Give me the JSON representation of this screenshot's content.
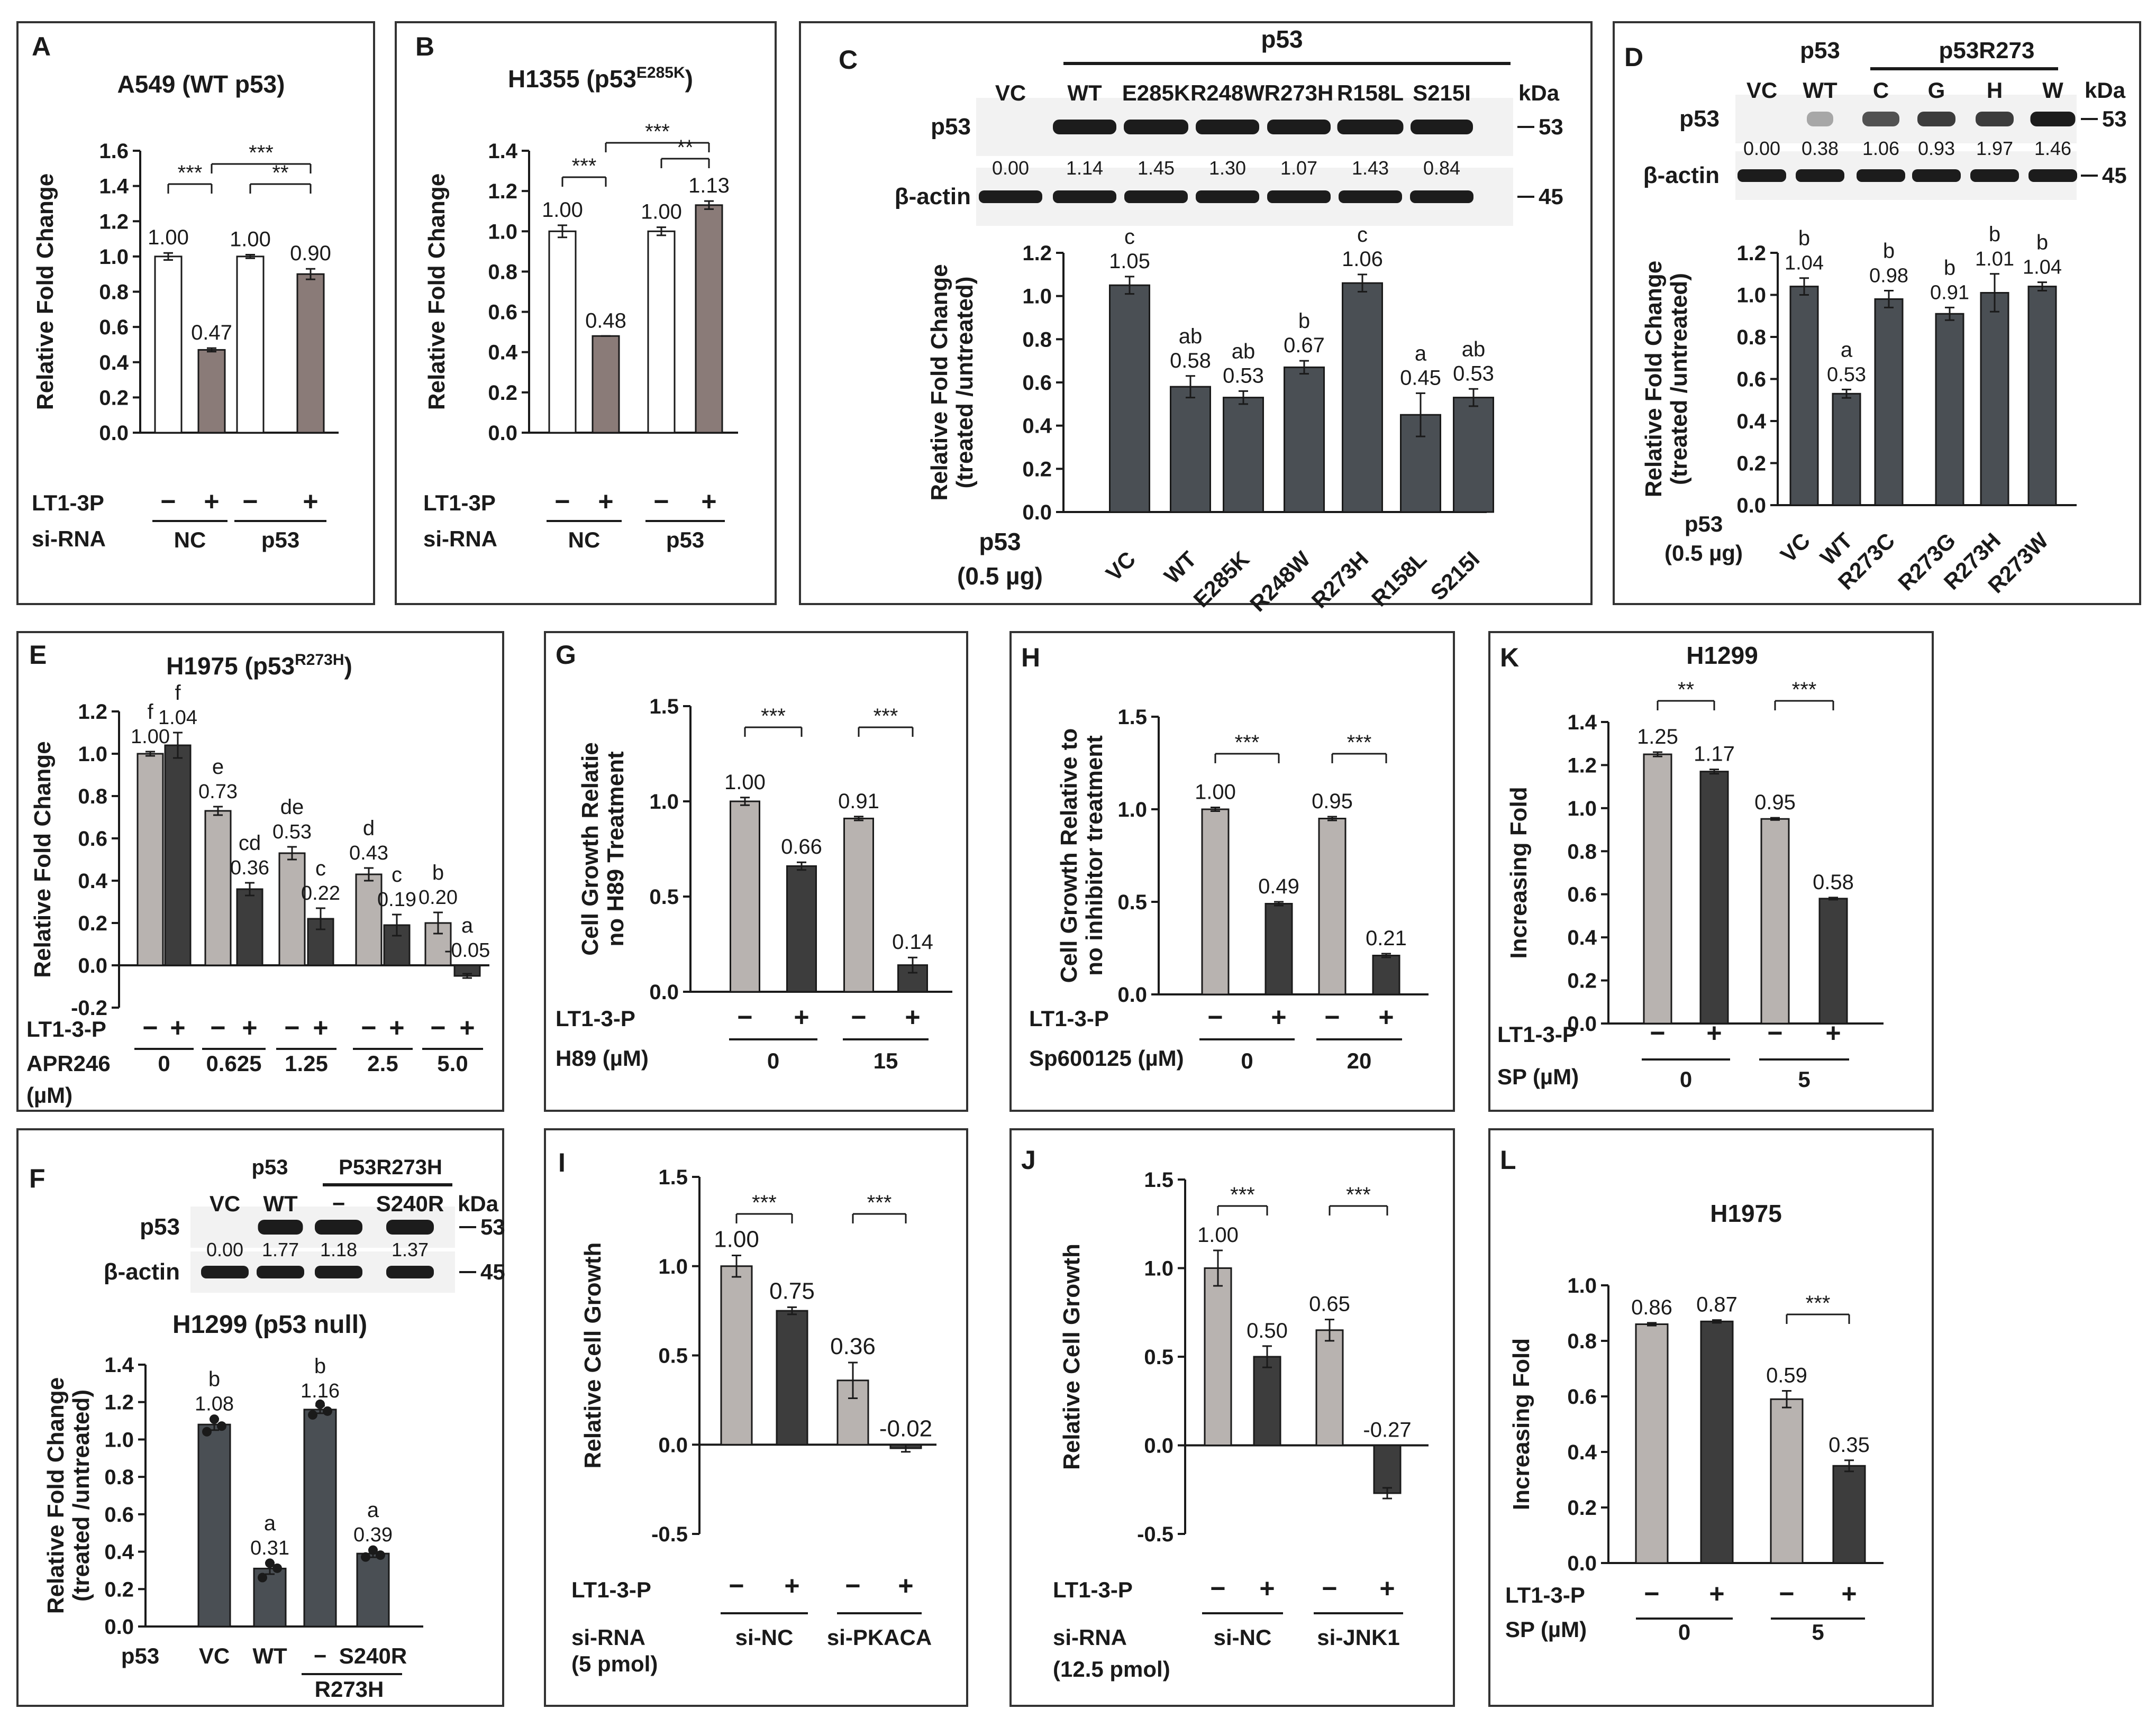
{
  "colors": {
    "white": "#ffffff",
    "light": "#b8b3b0",
    "dark": "#3d3d3d",
    "mid": "#8a7b78",
    "bar": "#4a4f54",
    "blot_bg": "#f2f2f2",
    "band": "#1c1c1c",
    "border": "#333333"
  },
  "chart_data": [
    {
      "panel": "A",
      "type": "bar",
      "title": "A549 (WT p53)",
      "ylabel": "Relative Fold Change",
      "ylim": [
        0,
        1.6
      ],
      "yticks": [
        "0.0",
        "0.2",
        "0.4",
        "0.6",
        "0.8",
        "1.0",
        "1.2",
        "1.4",
        "1.6"
      ],
      "values": [
        1.0,
        0.47,
        1.0,
        0.9
      ],
      "errors": [
        0.02,
        0.01,
        0.01,
        0.03
      ],
      "labels": [
        "1.00",
        "0.47",
        "1.00",
        "0.90"
      ],
      "letters": [],
      "fills": [
        "white",
        "mid",
        "white",
        "mid"
      ],
      "brackets": [
        {
          "from": 0,
          "to": 1,
          "text": "***"
        },
        {
          "from": 2,
          "to": 3,
          "text": "**"
        },
        {
          "from": 1,
          "to": 3,
          "text": "***"
        }
      ],
      "signs": [
        "−",
        "+",
        "−",
        "+"
      ],
      "row_labels": [
        "LT1-3P",
        "si-RNA"
      ],
      "group_labels": [
        "NC",
        "p53"
      ]
    },
    {
      "panel": "B",
      "type": "bar",
      "title": "H1355 (p53",
      "title_sup": "E285K",
      "title_end": ")",
      "ylabel": "Relative Fold Change",
      "ylim": [
        0,
        1.4
      ],
      "yticks": [
        "0.0",
        "0.2",
        "0.4",
        "0.6",
        "0.8",
        "1.0",
        "1.2",
        "1.4"
      ],
      "values": [
        1.0,
        0.48,
        1.0,
        1.13
      ],
      "errors": [
        0.03,
        0.0,
        0.02,
        0.02
      ],
      "labels": [
        "1.00",
        "0.48",
        "1.00",
        "1.13"
      ],
      "letters": [],
      "fills": [
        "white",
        "mid",
        "white",
        "mid"
      ],
      "brackets": [
        {
          "from": 0,
          "to": 1,
          "text": "***"
        },
        {
          "from": 2,
          "to": 3,
          "text": "**"
        },
        {
          "from": 1,
          "to": 3,
          "text": "***"
        }
      ],
      "signs": [
        "−",
        "+",
        "−",
        "+"
      ],
      "row_labels": [
        "LT1-3P",
        "si-RNA"
      ],
      "group_labels": [
        "NC",
        "p53"
      ]
    },
    {
      "panel": "C",
      "type": "bar",
      "ylabel_lines": [
        "Relative Fold Change",
        "(treated /untreated)"
      ],
      "ylim": [
        0,
        1.2
      ],
      "yticks": [
        "0.0",
        "0.2",
        "0.4",
        "0.6",
        "0.8",
        "1.0",
        "1.2"
      ],
      "categories": [
        "VC",
        "WT",
        "E285K",
        "R248W",
        "R273H",
        "R158L",
        "S215I"
      ],
      "values": [
        1.05,
        0.58,
        0.53,
        0.67,
        1.06,
        0.45,
        0.53
      ],
      "errors": [
        0.04,
        0.05,
        0.03,
        0.03,
        0.04,
        0.1,
        0.04
      ],
      "labels": [
        "1.05",
        "0.58",
        "0.53",
        "0.67",
        "1.06",
        "0.45",
        "0.53"
      ],
      "letters": [
        "c",
        "ab",
        "ab",
        "b",
        "c",
        "a",
        "ab"
      ],
      "xlabel_lines": [
        "p53",
        "(0.5 µg)"
      ],
      "blot": {
        "header": "p53",
        "lanes": [
          "VC",
          "WT",
          "E285K",
          "R248W",
          "R273H",
          "R158L",
          "S215I"
        ],
        "kda_label": "kDa",
        "rows": [
          "p53",
          "β-actin"
        ],
        "mw": [
          "53",
          "45"
        ],
        "quant": [
          "0.00",
          "1.14",
          "1.45",
          "1.30",
          "1.07",
          "1.43",
          "0.84"
        ]
      }
    },
    {
      "panel": "D",
      "type": "bar",
      "ylabel_lines": [
        "Relative Fold Change",
        "(treated /untreated)"
      ],
      "ylim": [
        0,
        1.2
      ],
      "yticks": [
        "0.0",
        "0.2",
        "0.4",
        "0.6",
        "0.8",
        "1.0",
        "1.2"
      ],
      "categories": [
        "VC",
        "WT",
        "R273C",
        "R273G",
        "R273H",
        "R273W"
      ],
      "values": [
        1.04,
        0.53,
        0.98,
        0.91,
        1.01,
        1.04
      ],
      "errors": [
        0.04,
        0.02,
        0.04,
        0.03,
        0.09,
        0.02
      ],
      "labels": [
        "1.04",
        "0.53",
        "0.98",
        "0.91",
        "1.01",
        "1.04"
      ],
      "letters": [
        "b",
        "a",
        "b",
        "b",
        "b",
        "b"
      ],
      "xlabel_lines": [
        "p53",
        "(0.5 µg)"
      ],
      "blot": {
        "header_left": "p53",
        "header_right": "p53R273",
        "lanes": [
          "VC",
          "WT",
          "C",
          "G",
          "H",
          "W"
        ],
        "kda_label": "kDa",
        "rows": [
          "p53",
          "β-actin"
        ],
        "mw": [
          "53",
          "45"
        ],
        "quant": [
          "0.00",
          "0.38",
          "1.06",
          "0.93",
          "1.97",
          "1.46"
        ]
      }
    },
    {
      "panel": "E",
      "type": "bar",
      "title": "H1975 (p53",
      "title_sup": "R273H",
      "title_end": ")",
      "ylabel": "Relative Fold Change",
      "ylim": [
        -0.2,
        1.2
      ],
      "yticks": [
        "-0.2",
        "0.0",
        "0.2",
        "0.4",
        "0.6",
        "0.8",
        "1.0",
        "1.2"
      ],
      "values": [
        1.0,
        1.04,
        0.73,
        0.36,
        0.53,
        0.22,
        0.43,
        0.19,
        0.2,
        -0.05
      ],
      "errors": [
        0.01,
        0.06,
        0.02,
        0.03,
        0.03,
        0.05,
        0.03,
        0.05,
        0.05,
        0.01
      ],
      "labels": [
        "1.00",
        "1.04",
        "0.73",
        "0.36",
        "0.53",
        "0.22",
        "0.43",
        "0.19",
        "0.20",
        "-0.05"
      ],
      "letters": [
        "f",
        "f",
        "e",
        "cd",
        "de",
        "c",
        "d",
        "c",
        "b",
        "a"
      ],
      "signs": [
        "−",
        "+",
        "−",
        "+",
        "−",
        "+",
        "−",
        "+",
        "−",
        "+"
      ],
      "row_labels": [
        "LT1-3-P",
        "APR246",
        "(µM)"
      ],
      "group_labels": [
        "0",
        "0.625",
        "1.25",
        "2.5",
        "5.0"
      ]
    },
    {
      "panel": "F",
      "type": "bar",
      "title": "H1299 (p53 null)",
      "ylabel_lines": [
        "Relative Fold Change",
        "(treated /untreated)"
      ],
      "ylim": [
        0,
        1.4
      ],
      "yticks": [
        "0.0",
        "0.2",
        "0.4",
        "0.6",
        "0.8",
        "1.0",
        "1.2",
        "1.4"
      ],
      "categories": [
        "VC",
        "WT",
        "−",
        "S240R"
      ],
      "values": [
        1.08,
        0.31,
        1.16,
        0.39
      ],
      "errors": [
        0.03,
        0.03,
        0.02,
        0.02
      ],
      "labels": [
        "1.08",
        "0.31",
        "1.16",
        "0.39"
      ],
      "letters": [
        "b",
        "a",
        "b",
        "a"
      ],
      "points": [
        [
          1.05,
          1.1,
          1.08
        ],
        [
          0.27,
          0.33,
          0.32
        ],
        [
          1.14,
          1.18,
          1.16
        ],
        [
          0.38,
          0.4,
          0.39
        ]
      ],
      "xlabel": "p53",
      "x_group_label": "R273H",
      "blot": {
        "header_left": "p53",
        "header_right": "P53R273H",
        "lanes": [
          "VC",
          "WT",
          "−",
          "S240R"
        ],
        "kda_label": "kDa",
        "rows": [
          "p53",
          "β-actin"
        ],
        "mw": [
          "53",
          "45"
        ],
        "quant": [
          "0.00",
          "1.77",
          "1.18",
          "1.37"
        ]
      }
    },
    {
      "panel": "G",
      "type": "bar",
      "ylabel_lines": [
        "Cell Growth Relatie",
        "no H89 Treatment"
      ],
      "ylim": [
        0,
        1.5
      ],
      "yticks": [
        "0.0",
        "0.5",
        "1.0",
        "1.5"
      ],
      "values": [
        1.0,
        0.66,
        0.91,
        0.14
      ],
      "errors": [
        0.02,
        0.02,
        0.01,
        0.04
      ],
      "labels": [
        "1.00",
        "0.66",
        "0.91",
        "0.14"
      ],
      "letters": [],
      "brackets": [
        {
          "from": 0,
          "to": 1,
          "text": "***"
        },
        {
          "from": 2,
          "to": 3,
          "text": "***"
        }
      ],
      "signs": [
        "−",
        "+",
        "−",
        "+"
      ],
      "row_labels": [
        "LT1-3-P",
        "H89 (µM)"
      ],
      "group_labels": [
        "0",
        "15"
      ]
    },
    {
      "panel": "H",
      "type": "bar",
      "ylabel_lines": [
        "Cell Growth Relative to",
        "no inhibitor treatment"
      ],
      "ylim": [
        0,
        1.5
      ],
      "yticks": [
        "0.0",
        "0.5",
        "1.0",
        "1.5"
      ],
      "values": [
        1.0,
        0.49,
        0.95,
        0.21
      ],
      "errors": [
        0.01,
        0.01,
        0.01,
        0.01
      ],
      "labels": [
        "1.00",
        "0.49",
        "0.95",
        "0.21"
      ],
      "letters": [],
      "brackets": [
        {
          "from": 0,
          "to": 1,
          "text": "***"
        },
        {
          "from": 2,
          "to": 3,
          "text": "***"
        }
      ],
      "signs": [
        "−",
        "+",
        "−",
        "+"
      ],
      "row_labels": [
        "LT1-3-P",
        "Sp600125 (µM)"
      ],
      "group_labels": [
        "0",
        "20"
      ]
    },
    {
      "panel": "K",
      "type": "bar",
      "title": "H1299",
      "ylabel": "Increasing Fold",
      "ylim": [
        0,
        1.4
      ],
      "yticks": [
        "0.0",
        "0.2",
        "0.4",
        "0.6",
        "0.8",
        "1.0",
        "1.2",
        "1.4"
      ],
      "values": [
        1.25,
        1.17,
        0.95,
        0.58
      ],
      "errors": [
        0.01,
        0.01,
        0.005,
        0.005
      ],
      "labels": [
        "1.25",
        "1.17",
        "0.95",
        "0.58"
      ],
      "letters": [],
      "brackets": [
        {
          "from": 0,
          "to": 1,
          "text": "**"
        },
        {
          "from": 2,
          "to": 3,
          "text": "***"
        }
      ],
      "signs": [
        "−",
        "+",
        "−",
        "+"
      ],
      "row_labels": [
        "LT1-3-P",
        "SP (µM)"
      ],
      "group_labels": [
        "0",
        "5"
      ]
    },
    {
      "panel": "I",
      "type": "bar",
      "ylabel": "Relative Cell Growth",
      "ylim": [
        -0.5,
        1.5
      ],
      "yticks": [
        "-0.5",
        "0.0",
        "0.5",
        "1.0",
        "1.5"
      ],
      "values": [
        1.0,
        0.75,
        0.36,
        -0.02
      ],
      "errors": [
        0.06,
        0.02,
        0.1,
        0.02
      ],
      "labels": [
        "1.00",
        "0.75",
        "0.36",
        "-0.02"
      ],
      "letters": [],
      "brackets": [
        {
          "from": 0,
          "to": 1,
          "text": "***"
        },
        {
          "from": 2,
          "to": 3,
          "text": "***"
        }
      ],
      "signs": [
        "−",
        "+",
        "−",
        "+"
      ],
      "row_labels": [
        "LT1-3-P",
        "si-RNA",
        "(5 pmol)"
      ],
      "group_labels": [
        "si-NC",
        "si-PKACA"
      ]
    },
    {
      "panel": "J",
      "type": "bar",
      "ylabel": "Relative Cell Growth",
      "ylim": [
        -0.5,
        1.5
      ],
      "yticks": [
        "-0.5",
        "0.0",
        "0.5",
        "1.0",
        "1.5"
      ],
      "values": [
        1.0,
        0.5,
        0.65,
        -0.27
      ],
      "errors": [
        0.1,
        0.06,
        0.06,
        0.03
      ],
      "labels": [
        "1.00",
        "0.50",
        "0.65",
        "-0.27"
      ],
      "letters": [],
      "brackets": [
        {
          "from": 0,
          "to": 1,
          "text": "***"
        },
        {
          "from": 2,
          "to": 3,
          "text": "***"
        }
      ],
      "signs": [
        "−",
        "+",
        "−",
        "+"
      ],
      "row_labels": [
        "LT1-3-P",
        "si-RNA",
        "(12.5 pmol)"
      ],
      "group_labels": [
        "si-NC",
        "si-JNK1"
      ]
    },
    {
      "panel": "L",
      "type": "bar",
      "title": "H1975",
      "ylabel": "Increasing Fold",
      "ylim": [
        0,
        1.0
      ],
      "yticks": [
        "0.0",
        "0.2",
        "0.4",
        "0.6",
        "0.8",
        "1.0"
      ],
      "values": [
        0.86,
        0.87,
        0.59,
        0.35
      ],
      "errors": [
        0.005,
        0.005,
        0.03,
        0.02
      ],
      "labels": [
        "0.86",
        "0.87",
        "0.59",
        "0.35"
      ],
      "letters": [],
      "brackets": [
        {
          "from": 2,
          "to": 3,
          "text": "***"
        }
      ],
      "signs": [
        "−",
        "+",
        "−",
        "+"
      ],
      "row_labels": [
        "LT1-3-P",
        "SP (µM)"
      ],
      "group_labels": [
        "0",
        "5"
      ]
    }
  ]
}
